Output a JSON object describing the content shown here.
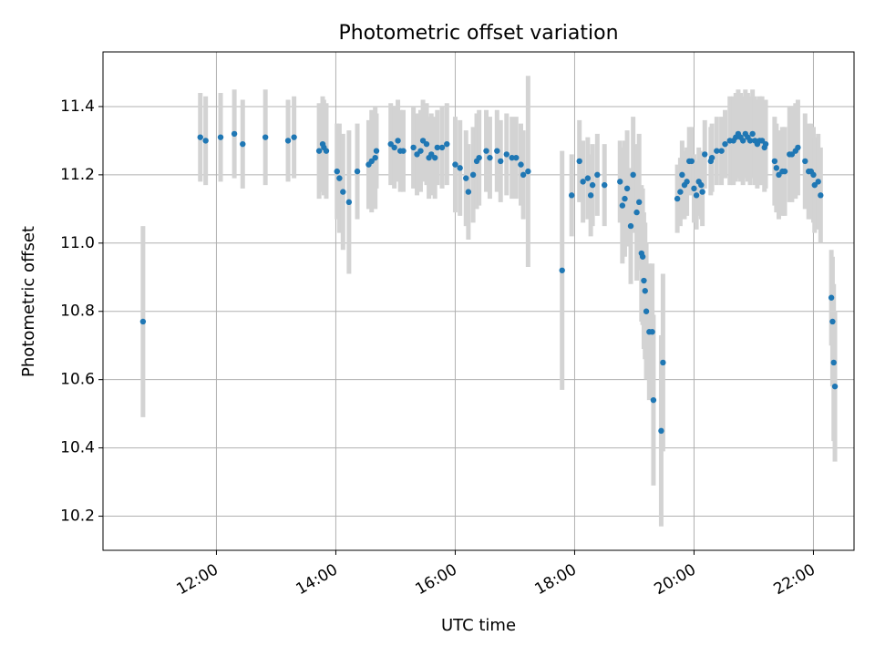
{
  "chart_data": {
    "type": "scatter",
    "title": "Photometric offset variation",
    "xlabel": "UTC time",
    "ylabel": "Photometric offset",
    "x_unit": "hours UTC",
    "xlim": [
      10.1,
      22.68
    ],
    "ylim": [
      10.1,
      11.56
    ],
    "x_ticks": [
      {
        "value": 12,
        "label": "12:00"
      },
      {
        "value": 14,
        "label": "14:00"
      },
      {
        "value": 16,
        "label": "16:00"
      },
      {
        "value": 18,
        "label": "18:00"
      },
      {
        "value": 20,
        "label": "20:00"
      },
      {
        "value": 22,
        "label": "22:00"
      }
    ],
    "y_ticks": [
      {
        "value": 10.2,
        "label": "10.2"
      },
      {
        "value": 10.4,
        "label": "10.4"
      },
      {
        "value": 10.6,
        "label": "10.6"
      },
      {
        "value": 10.8,
        "label": "10.8"
      },
      {
        "value": 11.0,
        "label": "11.0"
      },
      {
        "value": 11.2,
        "label": "11.2"
      },
      {
        "value": 11.4,
        "label": "11.4"
      }
    ],
    "grid": true,
    "colors": {
      "point": "#1f77b4",
      "errorbar": "#d3d3d3"
    },
    "series": [
      {
        "points": [
          [
            10.77,
            10.77,
            0.28
          ],
          [
            11.73,
            11.31,
            0.13
          ],
          [
            11.82,
            11.3,
            0.13
          ],
          [
            12.07,
            11.31,
            0.13
          ],
          [
            12.3,
            11.32,
            0.13
          ],
          [
            12.44,
            11.29,
            0.13
          ],
          [
            12.82,
            11.31,
            0.14
          ],
          [
            13.2,
            11.3,
            0.12
          ],
          [
            13.3,
            11.31,
            0.12
          ],
          [
            13.72,
            11.27,
            0.14
          ],
          [
            13.78,
            11.29,
            0.14
          ],
          [
            13.8,
            11.28,
            0.14
          ],
          [
            13.84,
            11.27,
            0.14
          ],
          [
            14.02,
            11.21,
            0.14
          ],
          [
            14.06,
            11.19,
            0.16
          ],
          [
            14.12,
            11.15,
            0.17
          ],
          [
            14.22,
            11.12,
            0.21
          ],
          [
            14.36,
            11.21,
            0.14
          ],
          [
            14.55,
            11.23,
            0.13
          ],
          [
            14.6,
            11.24,
            0.15
          ],
          [
            14.66,
            11.25,
            0.15
          ],
          [
            14.68,
            11.27,
            0.11
          ],
          [
            14.92,
            11.29,
            0.12
          ],
          [
            14.98,
            11.28,
            0.12
          ],
          [
            15.04,
            11.3,
            0.12
          ],
          [
            15.08,
            11.27,
            0.12
          ],
          [
            15.13,
            11.27,
            0.12
          ],
          [
            15.3,
            11.28,
            0.12
          ],
          [
            15.36,
            11.26,
            0.12
          ],
          [
            15.42,
            11.27,
            0.12
          ],
          [
            15.46,
            11.3,
            0.12
          ],
          [
            15.52,
            11.29,
            0.12
          ],
          [
            15.56,
            11.25,
            0.12
          ],
          [
            15.6,
            11.26,
            0.12
          ],
          [
            15.66,
            11.25,
            0.12
          ],
          [
            15.7,
            11.28,
            0.11
          ],
          [
            15.78,
            11.28,
            0.12
          ],
          [
            15.86,
            11.29,
            0.12
          ],
          [
            16.0,
            11.23,
            0.14
          ],
          [
            16.08,
            11.22,
            0.14
          ],
          [
            16.18,
            11.19,
            0.14
          ],
          [
            16.22,
            11.15,
            0.14
          ],
          [
            16.3,
            11.2,
            0.14
          ],
          [
            16.36,
            11.24,
            0.14
          ],
          [
            16.4,
            11.25,
            0.14
          ],
          [
            16.52,
            11.27,
            0.12
          ],
          [
            16.58,
            11.25,
            0.12
          ],
          [
            16.7,
            11.27,
            0.12
          ],
          [
            16.76,
            11.24,
            0.12
          ],
          [
            16.86,
            11.26,
            0.12
          ],
          [
            16.95,
            11.25,
            0.12
          ],
          [
            17.02,
            11.25,
            0.12
          ],
          [
            17.1,
            11.23,
            0.12
          ],
          [
            17.14,
            11.2,
            0.13
          ],
          [
            17.22,
            11.21,
            0.28
          ],
          [
            17.79,
            10.92,
            0.35
          ],
          [
            17.95,
            11.14,
            0.12
          ],
          [
            18.08,
            11.24,
            0.12
          ],
          [
            18.14,
            11.18,
            0.12
          ],
          [
            18.22,
            11.19,
            0.12
          ],
          [
            18.27,
            11.14,
            0.12
          ],
          [
            18.3,
            11.17,
            0.12
          ],
          [
            18.38,
            11.2,
            0.12
          ],
          [
            18.5,
            11.17,
            0.12
          ],
          [
            18.76,
            11.18,
            0.12
          ],
          [
            18.8,
            11.11,
            0.17
          ],
          [
            18.84,
            11.13,
            0.17
          ],
          [
            18.88,
            11.16,
            0.17
          ],
          [
            18.94,
            11.05,
            0.17
          ],
          [
            18.98,
            11.2,
            0.17
          ],
          [
            19.04,
            11.09,
            0.2
          ],
          [
            19.08,
            11.12,
            0.2
          ],
          [
            19.12,
            10.97,
            0.2
          ],
          [
            19.14,
            10.96,
            0.2
          ],
          [
            19.16,
            10.89,
            0.2
          ],
          [
            19.18,
            10.86,
            0.2
          ],
          [
            19.2,
            10.8,
            0.2
          ],
          [
            19.25,
            10.74,
            0.2
          ],
          [
            19.3,
            10.74,
            0.2
          ],
          [
            19.32,
            10.54,
            0.25
          ],
          [
            19.45,
            10.45,
            0.28
          ],
          [
            19.48,
            10.65,
            0.26
          ],
          [
            19.72,
            11.13,
            0.1
          ],
          [
            19.77,
            11.15,
            0.1
          ],
          [
            19.8,
            11.2,
            0.1
          ],
          [
            19.84,
            11.17,
            0.1
          ],
          [
            19.88,
            11.18,
            0.1
          ],
          [
            19.92,
            11.24,
            0.1
          ],
          [
            19.96,
            11.24,
            0.1
          ],
          [
            20.0,
            11.16,
            0.1
          ],
          [
            20.04,
            11.14,
            0.1
          ],
          [
            20.08,
            11.18,
            0.1
          ],
          [
            20.12,
            11.17,
            0.1
          ],
          [
            20.14,
            11.15,
            0.1
          ],
          [
            20.18,
            11.26,
            0.1
          ],
          [
            20.28,
            11.24,
            0.1
          ],
          [
            20.3,
            11.25,
            0.1
          ],
          [
            20.38,
            11.27,
            0.1
          ],
          [
            20.46,
            11.27,
            0.1
          ],
          [
            20.52,
            11.29,
            0.1
          ],
          [
            20.6,
            11.3,
            0.13
          ],
          [
            20.66,
            11.3,
            0.13
          ],
          [
            20.7,
            11.31,
            0.13
          ],
          [
            20.74,
            11.32,
            0.13
          ],
          [
            20.78,
            11.31,
            0.13
          ],
          [
            20.82,
            11.3,
            0.13
          ],
          [
            20.86,
            11.32,
            0.13
          ],
          [
            20.9,
            11.31,
            0.13
          ],
          [
            20.94,
            11.3,
            0.13
          ],
          [
            20.98,
            11.32,
            0.13
          ],
          [
            21.02,
            11.3,
            0.13
          ],
          [
            21.06,
            11.29,
            0.13
          ],
          [
            21.1,
            11.3,
            0.13
          ],
          [
            21.14,
            11.3,
            0.13
          ],
          [
            21.18,
            11.28,
            0.13
          ],
          [
            21.2,
            11.29,
            0.13
          ],
          [
            21.35,
            11.24,
            0.13
          ],
          [
            21.38,
            11.22,
            0.13
          ],
          [
            21.42,
            11.2,
            0.13
          ],
          [
            21.48,
            11.21,
            0.13
          ],
          [
            21.52,
            11.21,
            0.13
          ],
          [
            21.6,
            11.26,
            0.14
          ],
          [
            21.64,
            11.26,
            0.14
          ],
          [
            21.7,
            11.27,
            0.14
          ],
          [
            21.74,
            11.28,
            0.14
          ],
          [
            21.86,
            11.24,
            0.14
          ],
          [
            21.92,
            11.21,
            0.14
          ],
          [
            21.96,
            11.21,
            0.14
          ],
          [
            22.0,
            11.2,
            0.14
          ],
          [
            22.02,
            11.17,
            0.14
          ],
          [
            22.08,
            11.18,
            0.14
          ],
          [
            22.12,
            11.14,
            0.14
          ],
          [
            22.3,
            10.84,
            0.14
          ],
          [
            22.32,
            10.77,
            0.19
          ],
          [
            22.34,
            10.65,
            0.23
          ],
          [
            22.36,
            10.58,
            0.22
          ]
        ]
      }
    ]
  }
}
